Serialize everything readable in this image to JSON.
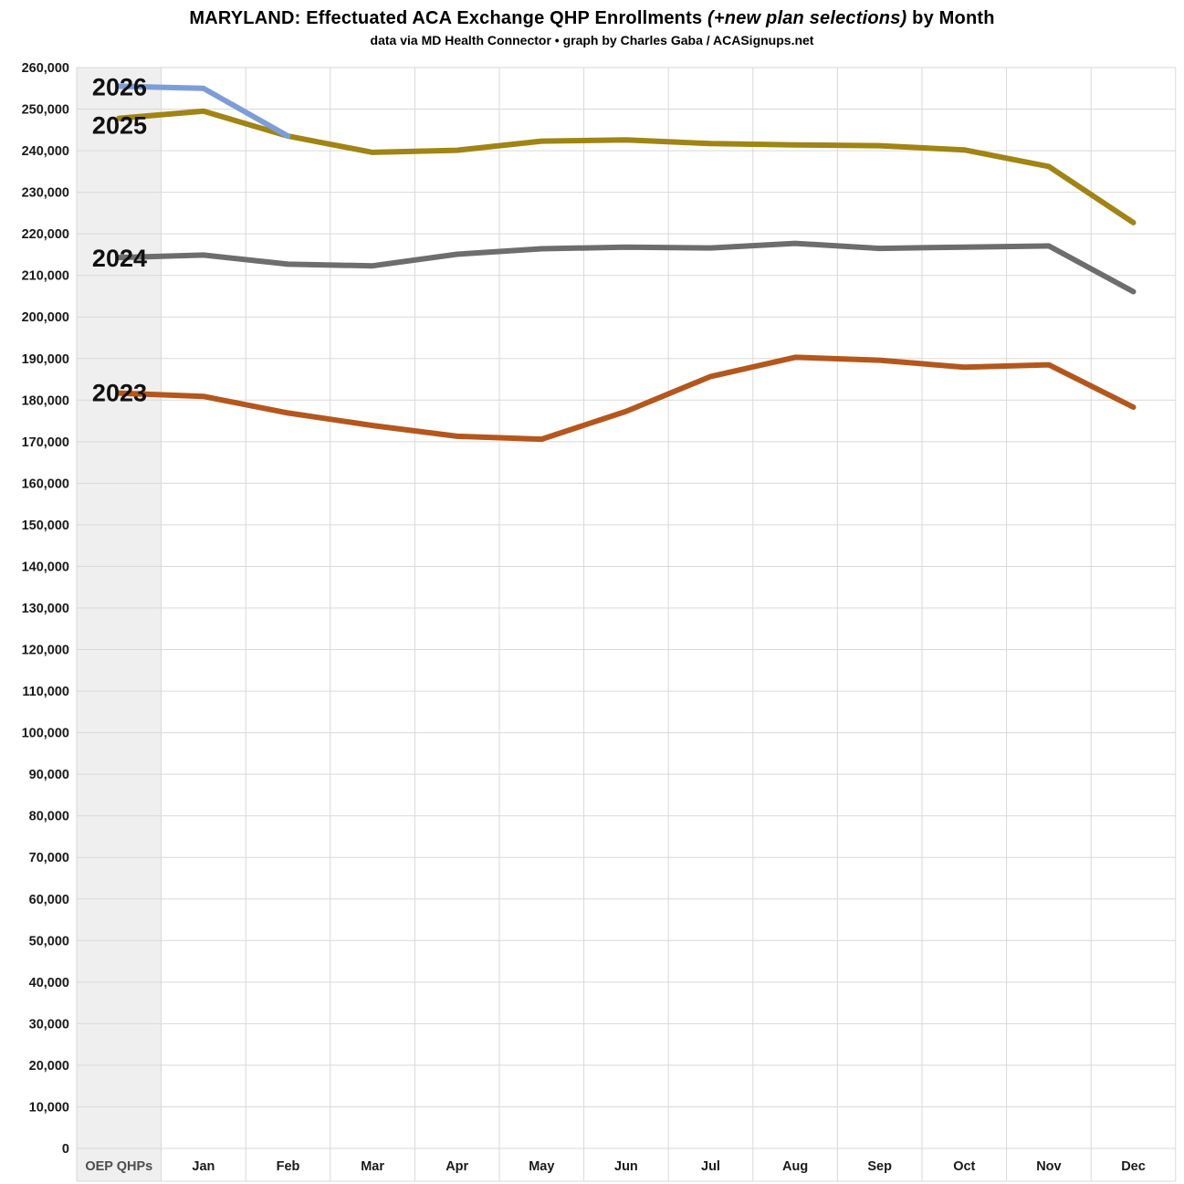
{
  "header": {
    "title_main": "MARYLAND: Effectuated ACA Exchange QHP Enrollments",
    "title_italic": "(+new plan selections)",
    "title_suffix": "by Month",
    "subtitle": "data via MD Health Connector • graph by Charles Gaba / ACASignups.net"
  },
  "chart_data": {
    "type": "line",
    "title": "MARYLAND: Effectuated ACA Exchange QHP Enrollments (+new plan selections) by Month",
    "subtitle": "data via MD Health Connector • graph by Charles Gaba / ACASignups.net",
    "categories": [
      "OEP QHPs",
      "Jan",
      "Feb",
      "Mar",
      "Apr",
      "May",
      "Jun",
      "Jul",
      "Aug",
      "Sep",
      "Oct",
      "Nov",
      "Dec"
    ],
    "y_axis": {
      "min": 0,
      "max": 260000,
      "step": 10000
    },
    "grid": true,
    "legend_position": "inline-left-year-labels",
    "highlight_column": "OEP QHPs",
    "highlight_color": "#efefef",
    "gridline_color": "#d9d9d9",
    "axis_label_color": "#1a1a1a",
    "first_category_label_color": "#4d4d4d",
    "series": [
      {
        "name": "2023",
        "color": "#b4571d",
        "values": [
          181700,
          180900,
          176900,
          173900,
          171300,
          170600,
          177300,
          185700,
          190300,
          189600,
          187900,
          188500,
          178300
        ]
      },
      {
        "name": "2024",
        "color": "#6d6d6d",
        "values": [
          214300,
          214900,
          212700,
          212300,
          215100,
          216400,
          216800,
          216600,
          217700,
          216500,
          216800,
          217100,
          206100
        ]
      },
      {
        "name": "2025",
        "color": "#a08414",
        "values": [
          247800,
          249500,
          243500,
          239600,
          240100,
          242300,
          242600,
          241700,
          241400,
          241200,
          240200,
          236200,
          222700
        ]
      },
      {
        "name": "2026",
        "color": "#7e9dd6",
        "values": [
          255500,
          255000,
          243500
        ]
      }
    ]
  }
}
